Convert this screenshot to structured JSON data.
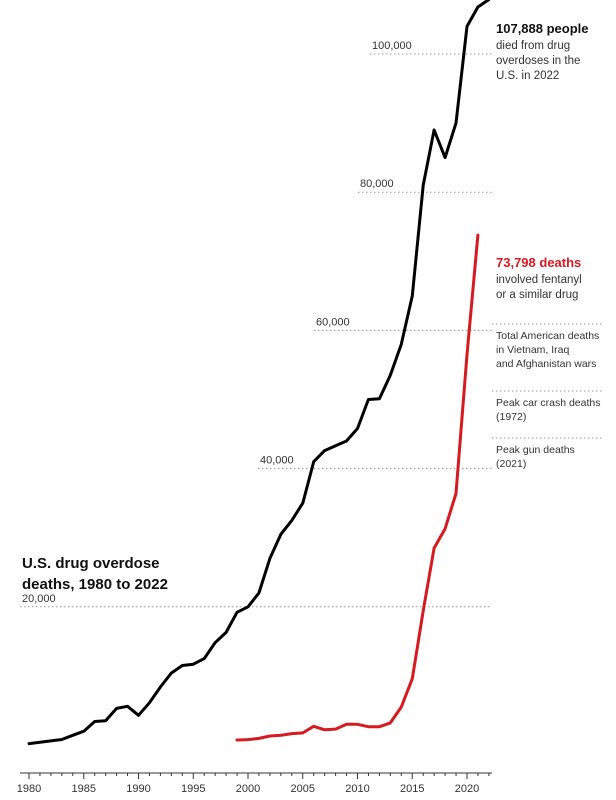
{
  "chart_data": {
    "type": "line",
    "title_lines": [
      "U.S. drug overdose",
      "deaths, 1980 to 2022"
    ],
    "xlabel": "",
    "ylabel": "",
    "xlim": [
      1979,
      2023
    ],
    "ylim": [
      0,
      110000
    ],
    "x_ticks": [
      1980,
      1985,
      1990,
      1995,
      2000,
      2005,
      2010,
      2015,
      2020
    ],
    "x_tick_labels": [
      "1980",
      "1985",
      "1990",
      "1995",
      "2000",
      "2005",
      "2010",
      "2015",
      "2020"
    ],
    "gridlines": [
      {
        "value": 20000,
        "label": "20,000"
      },
      {
        "value": 40000,
        "label": "40,000"
      },
      {
        "value": 60000,
        "label": "60,000"
      },
      {
        "value": 80000,
        "label": "80,000"
      },
      {
        "value": 100000,
        "label": "100,000"
      }
    ],
    "series": [
      {
        "color": "#000000",
        "x": [
          1980,
          1981,
          1982,
          1983,
          1984,
          1985,
          1986,
          1987,
          1988,
          1989,
          1990,
          1991,
          1992,
          1993,
          1994,
          1995,
          1996,
          1997,
          1998,
          1999,
          2000,
          2001,
          2002,
          2003,
          2004,
          2005,
          2006,
          2007,
          2008,
          2009,
          2010,
          2011,
          2012,
          2013,
          2014,
          2015,
          2016,
          2017,
          2018,
          2019,
          2020,
          2021,
          2022
        ],
        "values": [
          200,
          400,
          600,
          800,
          1400,
          2000,
          3400,
          3500,
          5300,
          5600,
          4300,
          6100,
          8400,
          10400,
          11500,
          11700,
          12500,
          14800,
          16300,
          19200,
          20000,
          22000,
          27000,
          30500,
          32500,
          35000,
          41000,
          42600,
          43300,
          44000,
          45800,
          50000,
          50100,
          53500,
          58000,
          65000,
          81000,
          89000,
          85000,
          90000,
          104000,
          106800,
          107888
        ]
      },
      {
        "color": "#d71920",
        "x": [
          1999,
          2000,
          2001,
          2002,
          2003,
          2004,
          2005,
          2006,
          2007,
          2008,
          2009,
          2010,
          2011,
          2012,
          2013,
          2014,
          2015,
          2016,
          2017,
          2018,
          2019,
          2020,
          2021
        ],
        "values": [
          730,
          780,
          950,
          1300,
          1400,
          1650,
          1750,
          2700,
          2200,
          2300,
          3000,
          3000,
          2650,
          2650,
          3200,
          5500,
          9600,
          19400,
          28500,
          31300,
          36400,
          56500,
          73798
        ]
      }
    ]
  },
  "annotations": {
    "total": {
      "head": "107,888 people",
      "lines": [
        "died from drug",
        "overdoses in the",
        "U.S. in 2022"
      ]
    },
    "fentanyl": {
      "head": "73,798 deaths",
      "lines": [
        "involved fentanyl",
        "or a similar drug"
      ]
    },
    "refs": [
      {
        "lines": [
          "Total American deaths",
          "in Vietnam, Iraq",
          "and Afghanistan wars"
        ]
      },
      {
        "lines": [
          "Peak car crash deaths",
          "(1972)"
        ]
      },
      {
        "lines": [
          "Peak gun deaths",
          "(2021)"
        ]
      }
    ]
  }
}
